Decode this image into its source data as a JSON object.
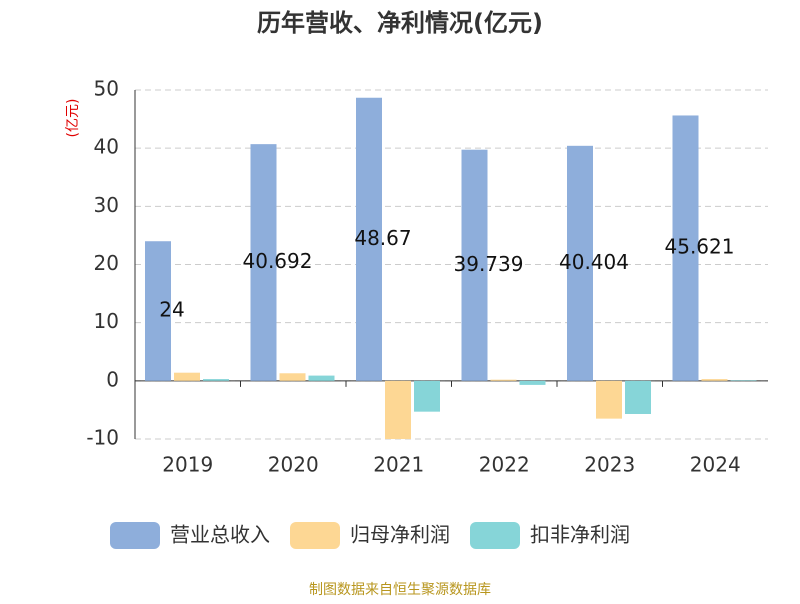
{
  "chart_data": {
    "type": "bar",
    "title": "历年营收、净利情况(亿元)",
    "y_label": "(亿元)",
    "categories": [
      "2019",
      "2020",
      "2021",
      "2022",
      "2023",
      "2024"
    ],
    "series": [
      {
        "name": "营业总收入",
        "color": "#8eaedb",
        "values": [
          24,
          40.692,
          48.67,
          39.739,
          40.404,
          45.621
        ]
      },
      {
        "name": "归母净利润",
        "color": "#fdd794",
        "values": [
          1.4,
          1.3,
          -10,
          0.2,
          -6.5,
          0.3
        ]
      },
      {
        "name": "扣非净利润",
        "color": "#86d5d8",
        "values": [
          0.3,
          0.9,
          -5.3,
          -0.7,
          -5.7,
          0.1
        ]
      }
    ],
    "ylim": [
      -10,
      50
    ],
    "yticks": [
      -10,
      0,
      10,
      20,
      30,
      40,
      50
    ],
    "grid": true,
    "source": "制图数据来自恒生聚源数据库"
  }
}
